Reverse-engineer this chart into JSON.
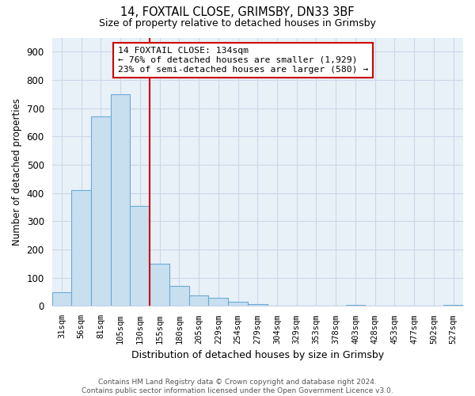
{
  "title1": "14, FOXTAIL CLOSE, GRIMSBY, DN33 3BF",
  "title2": "Size of property relative to detached houses in Grimsby",
  "xlabel": "Distribution of detached houses by size in Grimsby",
  "ylabel": "Number of detached properties",
  "bar_labels": [
    "31sqm",
    "56sqm",
    "81sqm",
    "105sqm",
    "130sqm",
    "155sqm",
    "180sqm",
    "205sqm",
    "229sqm",
    "254sqm",
    "279sqm",
    "304sqm",
    "329sqm",
    "353sqm",
    "378sqm",
    "403sqm",
    "428sqm",
    "453sqm",
    "477sqm",
    "502sqm",
    "527sqm"
  ],
  "bar_values": [
    50,
    410,
    670,
    750,
    355,
    150,
    70,
    37,
    30,
    15,
    8,
    2,
    0,
    0,
    0,
    5,
    0,
    0,
    0,
    0,
    5
  ],
  "bar_color": "#c8dff0",
  "bar_edge_color": "#6aaad4",
  "highlight_bar_index": 4,
  "highlight_color": "#cc0000",
  "annotation_line1": "14 FOXTAIL CLOSE: 134sqm",
  "annotation_line2": "← 76% of detached houses are smaller (1,929)",
  "annotation_line3": "23% of semi-detached houses are larger (580) →",
  "annotation_box_color": "#ffffff",
  "annotation_box_edge": "#cc0000",
  "ylim": [
    0,
    950
  ],
  "yticks": [
    0,
    100,
    200,
    300,
    400,
    500,
    600,
    700,
    800,
    900
  ],
  "footer_text": "Contains HM Land Registry data © Crown copyright and database right 2024.\nContains public sector information licensed under the Open Government Licence v3.0.",
  "grid_color": "#ccd8e8",
  "bg_color": "#ffffff",
  "plot_bg_color": "#e8f0f8"
}
